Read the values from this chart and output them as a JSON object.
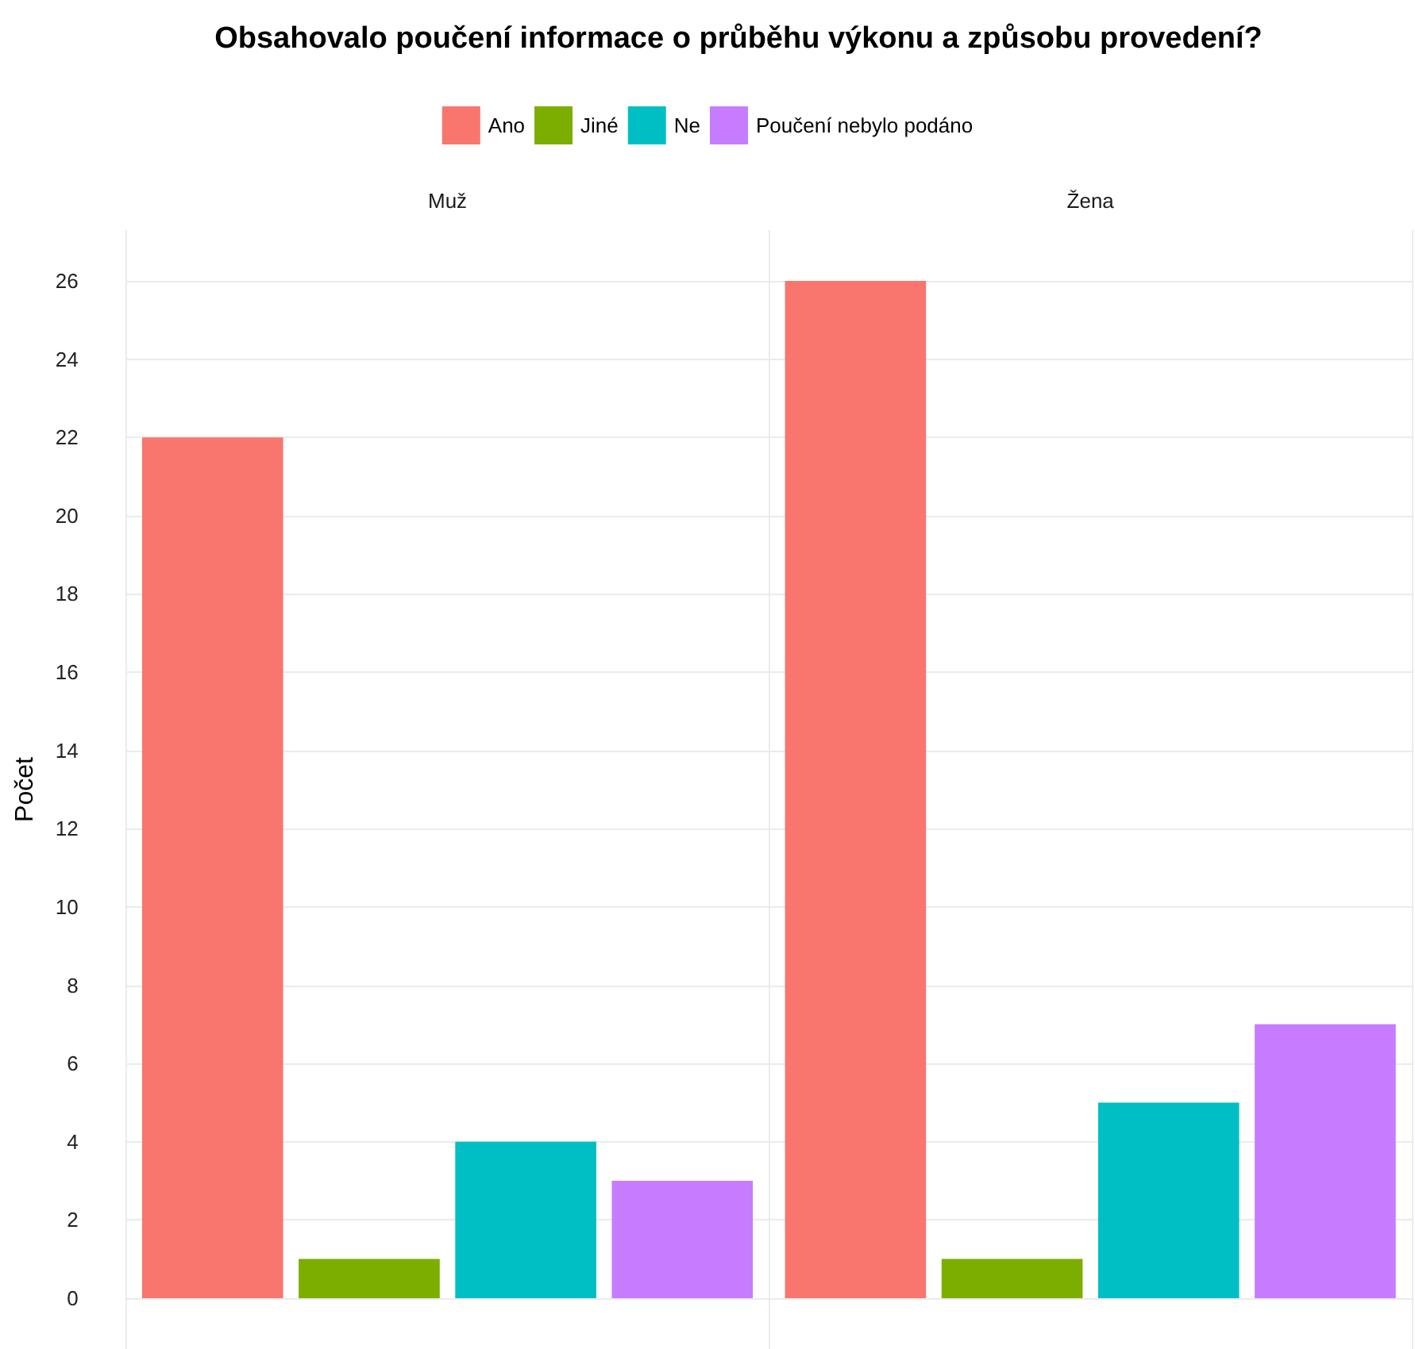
{
  "chart_data": {
    "type": "bar",
    "title": "Obsahovalo poučení informace o průběhu výkonu a způsobu provedení?",
    "ylabel": "Počet",
    "categories": [
      "Muž",
      "Žena"
    ],
    "series": [
      {
        "name": "Ano",
        "color": "#f8766d",
        "values": [
          22,
          26
        ]
      },
      {
        "name": "Jiné",
        "color": "#7cae00",
        "values": [
          1,
          1
        ]
      },
      {
        "name": "Ne",
        "color": "#00bfc4",
        "values": [
          4,
          5
        ]
      },
      {
        "name": "Poučení nebylo podáno",
        "color": "#c77cff",
        "values": [
          3,
          7
        ]
      }
    ],
    "ylim": [
      -1.3,
      27.3
    ],
    "yticks": [
      0,
      2,
      4,
      6,
      8,
      10,
      12,
      14,
      16,
      18,
      20,
      22,
      24,
      26
    ],
    "grid": true,
    "legend": "top"
  }
}
